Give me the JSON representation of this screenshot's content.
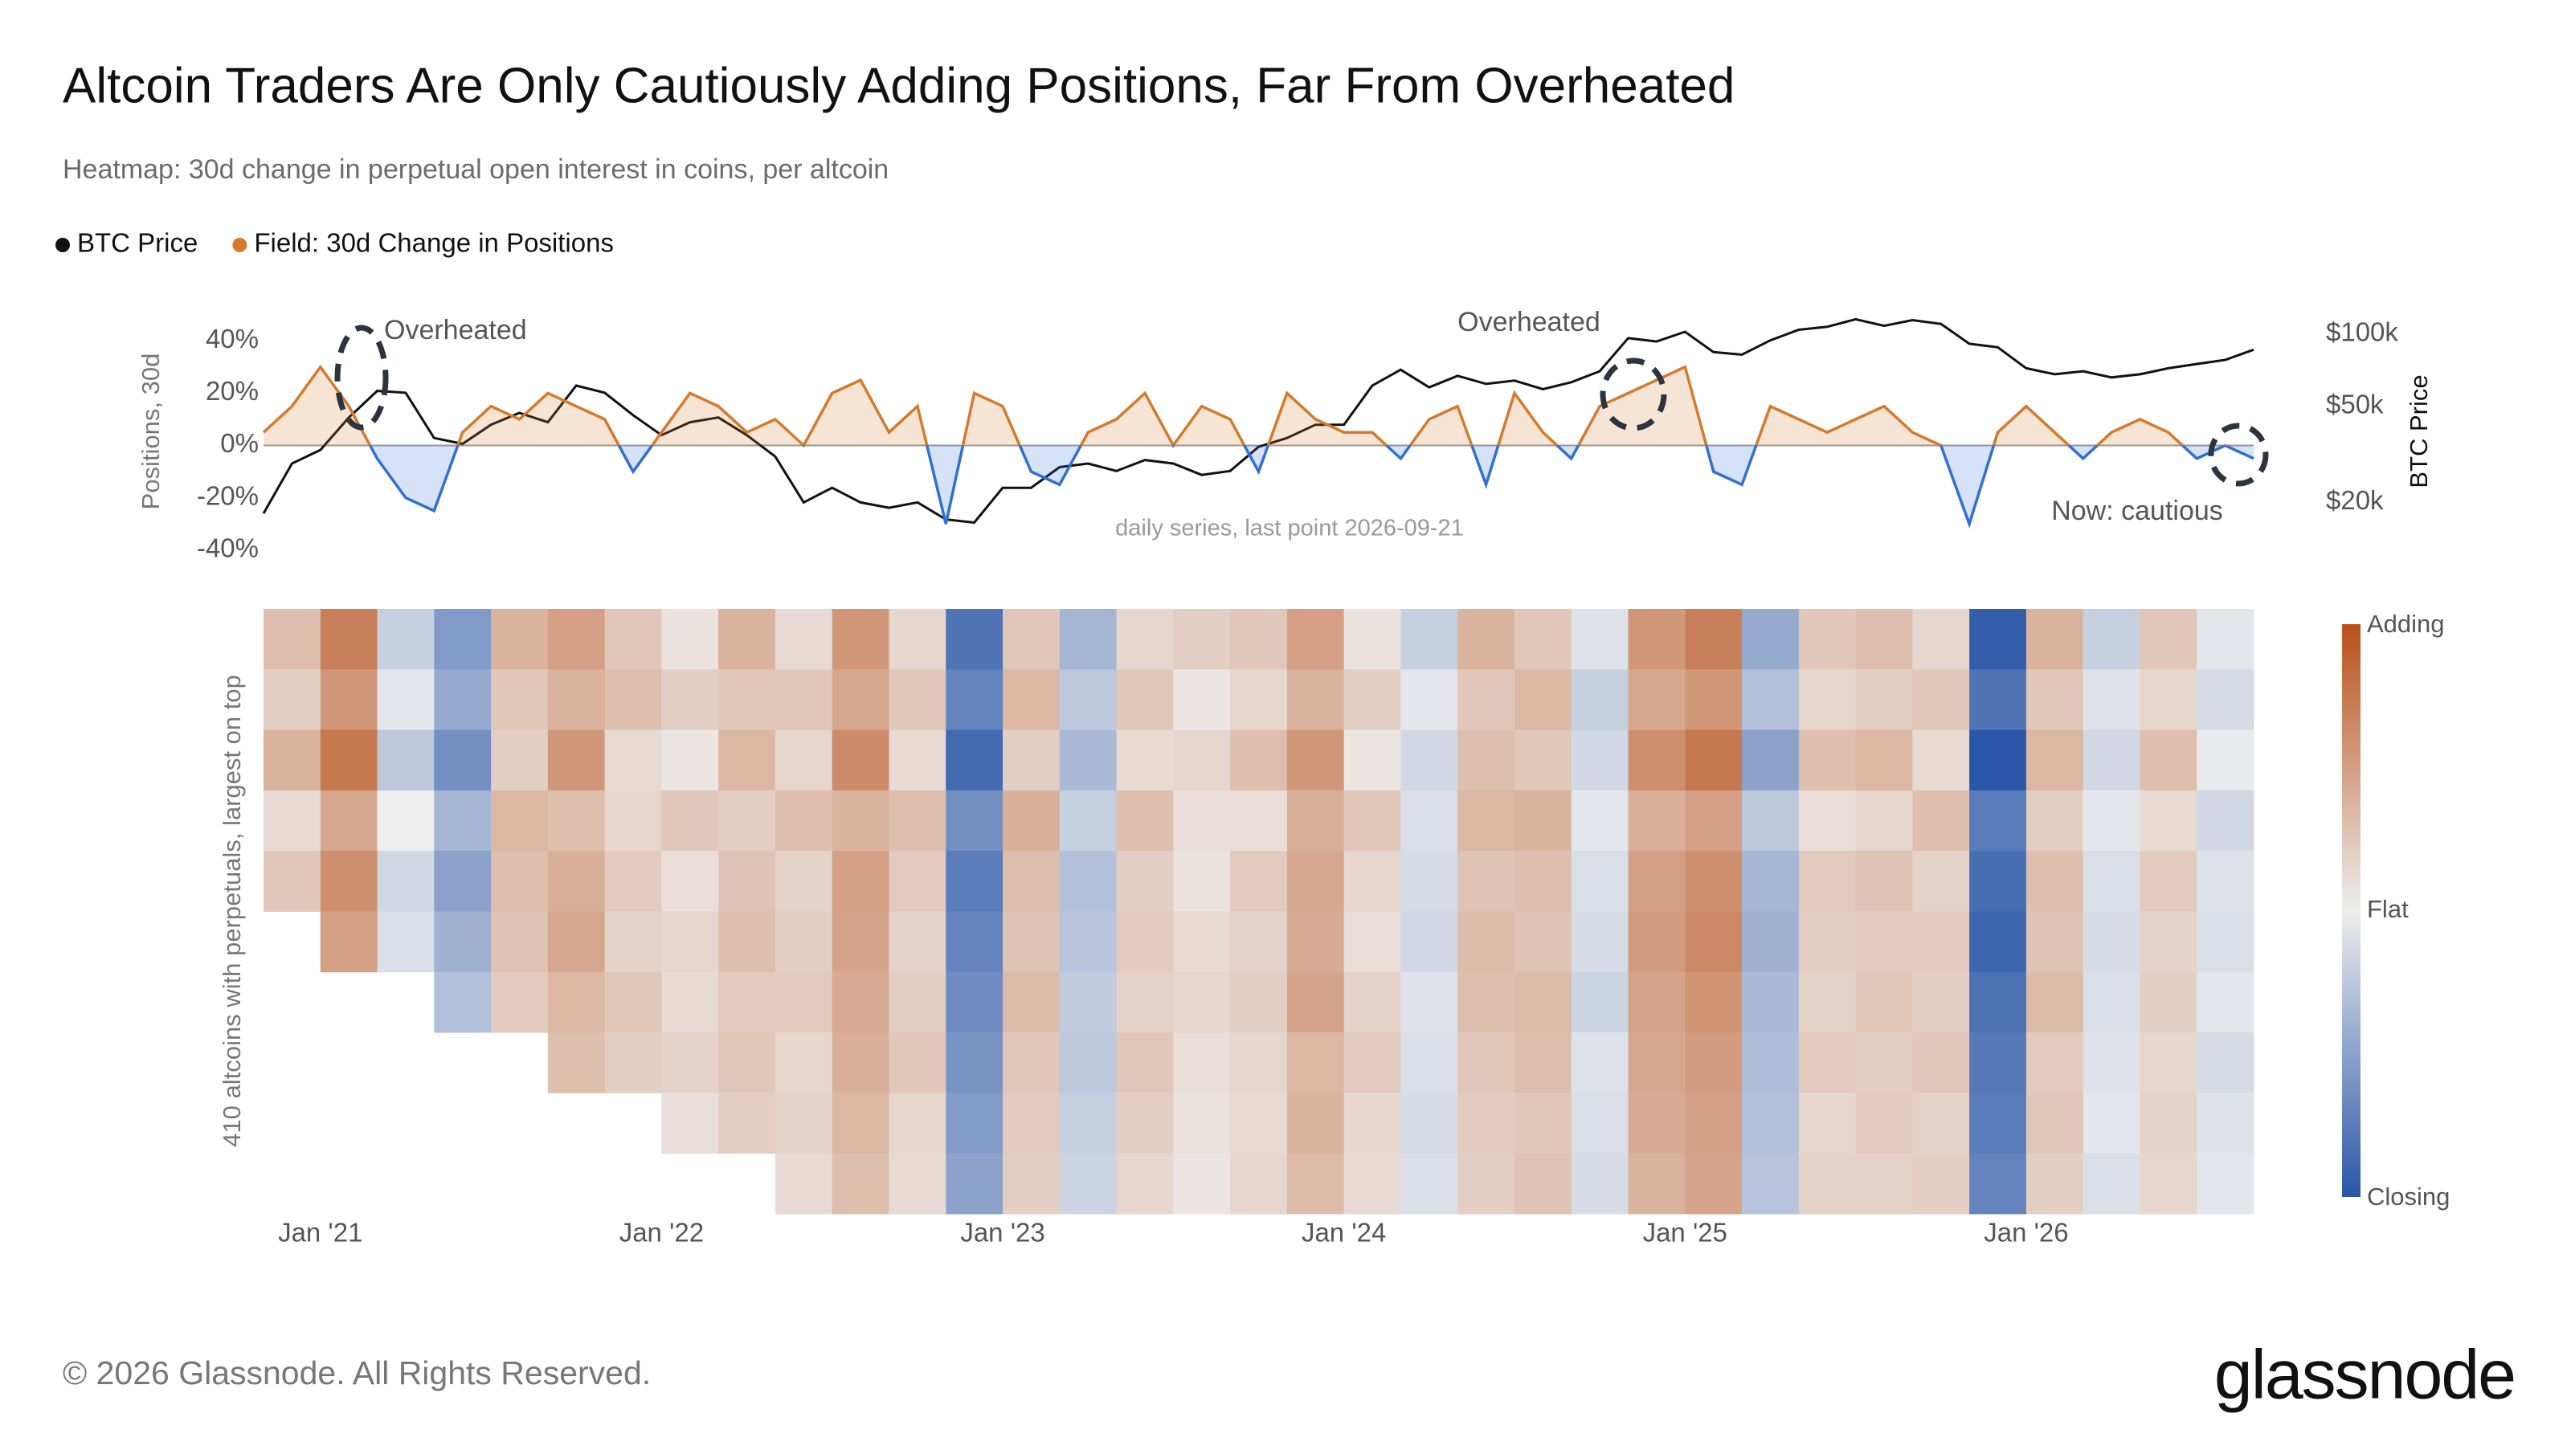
{
  "header": {
    "title": "Altcoin Traders Are Only Cautiously Adding Positions, Far From Overheated",
    "subtitle": "Heatmap: 30d change in perpetual open interest in coins, per altcoin"
  },
  "chart_data": [
    {
      "type": "line",
      "x": [
        "2020-11",
        "2020-12",
        "2021-01",
        "2021-02",
        "2021-03",
        "2021-04",
        "2021-05",
        "2021-06",
        "2021-07",
        "2021-08",
        "2021-09",
        "2021-10",
        "2021-11",
        "2021-12",
        "2022-01",
        "2022-02",
        "2022-03",
        "2022-04",
        "2022-05",
        "2022-06",
        "2022-07",
        "2022-08",
        "2022-09",
        "2022-10",
        "2022-11",
        "2022-12",
        "2023-01",
        "2023-02",
        "2023-03",
        "2023-04",
        "2023-05",
        "2023-06",
        "2023-07",
        "2023-08",
        "2023-09",
        "2023-10",
        "2023-11",
        "2023-12",
        "2024-01",
        "2024-02",
        "2024-03",
        "2024-04",
        "2024-05",
        "2024-06",
        "2024-07",
        "2024-08",
        "2024-09",
        "2024-10",
        "2024-11",
        "2024-12",
        "2025-01",
        "2025-02",
        "2025-03",
        "2025-04",
        "2025-05",
        "2025-06",
        "2025-07",
        "2025-08",
        "2025-09",
        "2025-10",
        "2025-11",
        "2025-12",
        "2026-01",
        "2026-02",
        "2026-03",
        "2026-04",
        "2026-05",
        "2026-06",
        "2026-07",
        "2026-08",
        "2026-09"
      ],
      "xlim": [
        "2020-11",
        "2026-09"
      ],
      "series": [
        {
          "name": "BTC Price",
          "color": "#111111",
          "axis": "y2",
          "values": [
            18000,
            29000,
            33000,
            45000,
            58000,
            57000,
            37000,
            35000,
            42000,
            47000,
            43000,
            61000,
            57000,
            46000,
            38000,
            43000,
            45000,
            38000,
            31000,
            20000,
            23000,
            20000,
            19000,
            20000,
            17000,
            16500,
            23000,
            23000,
            28000,
            29000,
            27000,
            30000,
            29000,
            26000,
            27000,
            34000,
            37000,
            42000,
            42000,
            61000,
            71000,
            60000,
            67000,
            62000,
            64000,
            59000,
            63000,
            70000,
            96000,
            93000,
            102000,
            84000,
            82000,
            94000,
            104000,
            107000,
            115000,
            108000,
            114000,
            110000,
            91000,
            88000,
            72000,
            68000,
            70000,
            66000,
            68000,
            72000,
            75000,
            78000,
            86000
          ]
        },
        {
          "name": "Field: 30d Change in Positions",
          "color": "#d47a2c",
          "negative_color": "#2f6fd6",
          "values": [
            5,
            15,
            30,
            15,
            -5,
            -20,
            -25,
            5,
            15,
            10,
            20,
            15,
            10,
            -10,
            5,
            20,
            15,
            5,
            10,
            0,
            20,
            25,
            5,
            15,
            -30,
            20,
            15,
            -10,
            -15,
            5,
            10,
            20,
            0,
            15,
            10,
            -10,
            20,
            10,
            5,
            5,
            -5,
            10,
            15,
            -15,
            20,
            5,
            -5,
            15,
            20,
            25,
            30,
            -10,
            -15,
            15,
            10,
            5,
            10,
            15,
            5,
            0,
            -30,
            5,
            15,
            5,
            -5,
            5,
            10,
            5,
            -5,
            0,
            -5
          ]
        }
      ],
      "ylabel": "Positions, 30d",
      "ylim": [
        -45,
        45
      ],
      "yticks": [
        {
          "value": 40,
          "label": "40%"
        },
        {
          "value": 20,
          "label": "20%"
        },
        {
          "value": 0,
          "label": "0%"
        },
        {
          "value": -20,
          "label": "-20%"
        },
        {
          "value": -40,
          "label": "-40%"
        }
      ],
      "y2label": "BTC Price",
      "y2lim": [
        11200,
        106000
      ],
      "y2log": true,
      "y2ticks": [
        {
          "value": 100000,
          "label": "$100k"
        },
        {
          "value": 50000,
          "label": "$50k"
        },
        {
          "value": 20000,
          "label": "$20k"
        }
      ],
      "annotations": [
        "Overheated",
        "Overheated",
        "Now: cautious",
        "daily series, last point 2026-09-21"
      ]
    },
    {
      "type": "heatmap",
      "ylabel": "410 altcoins with perpetuals, largest on top",
      "xlim": [
        "2020-11",
        "2026-09"
      ],
      "xticks": [
        {
          "value": "2021-01",
          "label": "Jan '21"
        },
        {
          "value": "2022-01",
          "label": "Jan '22"
        },
        {
          "value": "2023-01",
          "label": "Jan '23"
        },
        {
          "value": "2024-01",
          "label": "Jan '24"
        },
        {
          "value": "2025-01",
          "label": "Jan '25"
        },
        {
          "value": "2026-01",
          "label": "Jan '26"
        }
      ],
      "columns": [
        "2020-11",
        "2021-01",
        "2021-03",
        "2021-05",
        "2021-07",
        "2021-09",
        "2021-11",
        "2022-01",
        "2022-03",
        "2022-05",
        "2022-07",
        "2022-09",
        "2022-11",
        "2023-01",
        "2023-03",
        "2023-05",
        "2023-07",
        "2023-09",
        "2023-11",
        "2024-01",
        "2024-03",
        "2024-05",
        "2024-07",
        "2024-09",
        "2024-11",
        "2025-01",
        "2025-03",
        "2025-05",
        "2025-07",
        "2025-09",
        "2025-11",
        "2026-01",
        "2026-03",
        "2026-05",
        "2026-07"
      ],
      "zlim": [
        -40,
        40
      ],
      "colors": [
        "#2a56a8",
        "#eeeeee",
        "#b9501a"
      ],
      "colorbar_labels": [
        "Adding",
        "Flat",
        "Closing"
      ],
      "z": [
        [
          12,
          28,
          -8,
          -22,
          15,
          20,
          10,
          3,
          15,
          5,
          22,
          6,
          -32,
          10,
          -15,
          6,
          8,
          10,
          20,
          3,
          -8,
          15,
          10,
          -3,
          22,
          28,
          -18,
          10,
          12,
          6,
          -38,
          15,
          -8,
          10,
          -2
        ],
        [
          8,
          22,
          -2,
          -18,
          10,
          15,
          12,
          8,
          10,
          10,
          18,
          10,
          -28,
          14,
          -10,
          10,
          2,
          6,
          15,
          8,
          -2,
          10,
          14,
          -8,
          18,
          22,
          -12,
          6,
          8,
          10,
          -32,
          10,
          -3,
          6,
          -5
        ],
        [
          15,
          30,
          -10,
          -25,
          8,
          22,
          5,
          2,
          14,
          6,
          25,
          5,
          -35,
          8,
          -14,
          5,
          6,
          12,
          22,
          2,
          -6,
          12,
          10,
          -6,
          24,
          30,
          -20,
          12,
          14,
          5,
          -40,
          14,
          -6,
          12,
          -1
        ],
        [
          5,
          18,
          0,
          -15,
          14,
          12,
          6,
          10,
          8,
          12,
          15,
          12,
          -25,
          16,
          -8,
          12,
          4,
          4,
          16,
          10,
          -4,
          14,
          15,
          -2,
          16,
          20,
          -10,
          4,
          6,
          12,
          -30,
          8,
          -2,
          5,
          -6
        ],
        [
          10,
          24,
          -6,
          -20,
          12,
          16,
          9,
          4,
          11,
          7,
          20,
          9,
          -30,
          12,
          -12,
          8,
          3,
          9,
          18,
          6,
          -5,
          11,
          12,
          -4,
          20,
          24,
          -15,
          9,
          11,
          7,
          -34,
          12,
          -4,
          9,
          -3
        ],
        [
          null,
          20,
          -4,
          -16,
          11,
          18,
          7,
          6,
          12,
          8,
          19,
          7,
          -28,
          11,
          -11,
          9,
          5,
          7,
          17,
          4,
          -6,
          13,
          11,
          -5,
          21,
          26,
          -16,
          8,
          9,
          9,
          -36,
          11,
          -5,
          7,
          -4
        ],
        [
          null,
          null,
          null,
          -12,
          9,
          14,
          10,
          5,
          9,
          9,
          17,
          8,
          -26,
          13,
          -9,
          7,
          6,
          8,
          19,
          7,
          -3,
          12,
          13,
          -7,
          19,
          23,
          -14,
          7,
          10,
          8,
          -33,
          13,
          -4,
          8,
          -2
        ],
        [
          null,
          null,
          null,
          null,
          null,
          12,
          8,
          7,
          10,
          6,
          16,
          10,
          -24,
          10,
          -10,
          10,
          4,
          6,
          14,
          9,
          -4,
          10,
          12,
          -3,
          18,
          21,
          -13,
          9,
          8,
          10,
          -31,
          9,
          -3,
          6,
          -5
        ],
        [
          null,
          null,
          null,
          null,
          null,
          null,
          null,
          4,
          8,
          7,
          14,
          6,
          -22,
          9,
          -8,
          8,
          3,
          5,
          15,
          6,
          -5,
          9,
          10,
          -4,
          17,
          20,
          -12,
          6,
          9,
          7,
          -30,
          10,
          -2,
          7,
          -3
        ],
        [
          null,
          null,
          null,
          null,
          null,
          null,
          null,
          null,
          null,
          5,
          12,
          5,
          -20,
          8,
          -7,
          6,
          2,
          6,
          13,
          5,
          -4,
          8,
          11,
          -5,
          15,
          19,
          -11,
          7,
          7,
          8,
          -28,
          8,
          -4,
          6,
          -2
        ]
      ]
    }
  ],
  "footer": {
    "copyright": "© 2026 Glassnode. All Rights Reserved.",
    "logo": "glassnode"
  }
}
